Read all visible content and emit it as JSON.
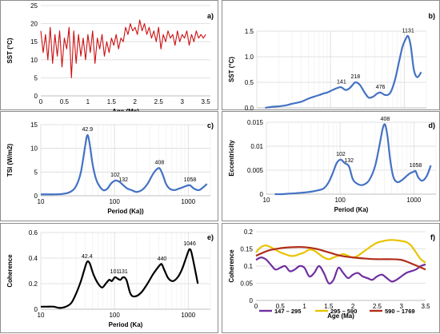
{
  "chart_data": [
    {
      "id": "a",
      "panel_label": "a)",
      "type": "line",
      "xscale": "linear",
      "xlabel": "Age (Ma)",
      "ylabel": "SST (°C)",
      "xlim": [
        0,
        3.6
      ],
      "ylim": [
        0,
        25
      ],
      "xticks": [
        0,
        0.5,
        1,
        1.5,
        2,
        2.5,
        3,
        3.5
      ],
      "xticklabels": [
        "0",
        "0.5",
        "1",
        "1.5",
        "2",
        "2.5",
        "3",
        "3.5"
      ],
      "yticks": [
        0,
        5,
        10,
        15,
        20,
        25
      ],
      "yticklabels": [
        "0",
        "5",
        "10",
        "15",
        "20",
        "25"
      ],
      "grid": true,
      "series": [
        {
          "color": "#cc1111",
          "x": [
            0.0,
            0.05,
            0.1,
            0.15,
            0.2,
            0.25,
            0.3,
            0.35,
            0.4,
            0.45,
            0.5,
            0.55,
            0.6,
            0.65,
            0.7,
            0.75,
            0.8,
            0.85,
            0.9,
            0.95,
            1.0,
            1.05,
            1.1,
            1.15,
            1.2,
            1.25,
            1.3,
            1.35,
            1.4,
            1.45,
            1.5,
            1.55,
            1.6,
            1.65,
            1.7,
            1.75,
            1.8,
            1.85,
            1.9,
            1.95,
            2.0,
            2.05,
            2.1,
            2.15,
            2.2,
            2.25,
            2.3,
            2.35,
            2.4,
            2.45,
            2.5,
            2.55,
            2.6,
            2.65,
            2.7,
            2.75,
            2.8,
            2.85,
            2.9,
            2.95,
            3.0,
            3.05,
            3.1,
            3.15,
            3.2,
            3.25,
            3.3,
            3.35,
            3.4,
            3.45,
            3.5
          ],
          "values": [
            18,
            12,
            17,
            10,
            19,
            9,
            17,
            11,
            18,
            8,
            16,
            13,
            19,
            5,
            18,
            9,
            17,
            11,
            16,
            10,
            17,
            12,
            18,
            9,
            16,
            13,
            17,
            11,
            15,
            12,
            16,
            14,
            17,
            13,
            16,
            15,
            19,
            17,
            20,
            18,
            19,
            17,
            21,
            18,
            20,
            17,
            19,
            16,
            18,
            15,
            19,
            13,
            17,
            15,
            18,
            16,
            17,
            14,
            18,
            15,
            17,
            16,
            18,
            14,
            17,
            15,
            18,
            16,
            17,
            16,
            17
          ]
        }
      ]
    },
    {
      "id": "b",
      "panel_label": "b)",
      "type": "line",
      "xscale": "log",
      "xlabel": "Period (Ka)",
      "ylabel": "SST (°C)",
      "xlim": [
        10,
        2000
      ],
      "ylim": [
        0,
        1.5
      ],
      "xticks": [
        10,
        100,
        1000
      ],
      "xticklabels": [
        "10",
        "100",
        "1000"
      ],
      "yticks": [
        0,
        0.5,
        1,
        1.5
      ],
      "yticklabels": [
        "0.0",
        "0.5",
        "1.0",
        "1.5"
      ],
      "grid": true,
      "peaks": [
        {
          "x": 141,
          "y": 0.4,
          "label": "141"
        },
        {
          "x": 218,
          "y": 0.5,
          "label": "218"
        },
        {
          "x": 476,
          "y": 0.3,
          "label": "476"
        },
        {
          "x": 1131,
          "y": 1.4,
          "label": "1131"
        }
      ],
      "series": [
        {
          "color": "#4472c4",
          "x": [
            13,
            16,
            20,
            25,
            30,
            40,
            50,
            60,
            70,
            80,
            90,
            100,
            115,
            130,
            141,
            160,
            180,
            200,
            218,
            250,
            290,
            330,
            380,
            430,
            476,
            560,
            650,
            750,
            850,
            950,
            1050,
            1131,
            1230,
            1350,
            1500,
            1700
          ],
          "values": [
            0.0,
            0.02,
            0.03,
            0.05,
            0.08,
            0.12,
            0.18,
            0.22,
            0.25,
            0.28,
            0.3,
            0.33,
            0.37,
            0.4,
            0.4,
            0.35,
            0.38,
            0.45,
            0.5,
            0.45,
            0.3,
            0.2,
            0.22,
            0.28,
            0.3,
            0.25,
            0.3,
            0.55,
            0.9,
            1.2,
            1.35,
            1.4,
            1.2,
            0.75,
            0.6,
            0.7
          ]
        }
      ]
    },
    {
      "id": "c",
      "panel_label": "c)",
      "type": "line",
      "xscale": "log",
      "xlabel": "Period (Ka))",
      "ylabel": "TSI (W/m2)",
      "xlim": [
        10,
        2000
      ],
      "ylim": [
        0,
        15
      ],
      "xticks": [
        10,
        100,
        1000
      ],
      "xticklabels": [
        "10",
        "100",
        "1000"
      ],
      "yticks": [
        0,
        5,
        10,
        15
      ],
      "yticklabels": [
        "0",
        "5",
        "10",
        "15"
      ],
      "grid": true,
      "peaks": [
        {
          "x": 42.9,
          "y": 12.8,
          "label": "42.9"
        },
        {
          "x": 102,
          "y": 3.2,
          "label": "102"
        },
        {
          "x": 132,
          "y": 2.2,
          "label": "132"
        },
        {
          "x": 408,
          "y": 5.8,
          "label": "408"
        },
        {
          "x": 1058,
          "y": 2.2,
          "label": "1058"
        }
      ],
      "series": [
        {
          "color": "#4472c4",
          "x": [
            10,
            15,
            20,
            25,
            30,
            35,
            40,
            42.9,
            46,
            50,
            55,
            60,
            70,
            80,
            90,
            102,
            115,
            132,
            150,
            170,
            200,
            240,
            280,
            330,
            370,
            408,
            450,
            500,
            560,
            650,
            750,
            850,
            950,
            1058,
            1200,
            1400,
            1600,
            1800
          ],
          "values": [
            0.3,
            0.3,
            0.4,
            0.8,
            2.0,
            5.0,
            10.5,
            12.8,
            11.0,
            7.0,
            4.0,
            2.5,
            1.2,
            1.5,
            2.6,
            3.2,
            3.0,
            2.2,
            1.5,
            1.2,
            0.8,
            1.3,
            2.5,
            4.5,
            5.5,
            5.8,
            4.5,
            2.5,
            1.5,
            1.2,
            1.5,
            1.8,
            2.1,
            2.2,
            1.5,
            1.2,
            1.8,
            2.5
          ]
        }
      ]
    },
    {
      "id": "d",
      "panel_label": "d)",
      "type": "line",
      "xscale": "log",
      "xlabel": "Period (Ka)",
      "ylabel": "Eccentricity",
      "xlim": [
        10,
        2000
      ],
      "ylim": [
        0,
        0.015
      ],
      "xticks": [
        10,
        100,
        1000
      ],
      "xticklabels": [
        "10",
        "100",
        "1000"
      ],
      "yticks": [
        0,
        0.005,
        0.01,
        0.015
      ],
      "yticklabels": [
        "0",
        "0.005",
        "0.01",
        "0.015"
      ],
      "grid": true,
      "peaks": [
        {
          "x": 102,
          "y": 0.0072,
          "label": "102"
        },
        {
          "x": 132,
          "y": 0.0058,
          "label": "132"
        },
        {
          "x": 408,
          "y": 0.0145,
          "label": "408"
        },
        {
          "x": 1058,
          "y": 0.0048,
          "label": "1058"
        }
      ],
      "series": [
        {
          "color": "#4472c4",
          "x": [
            13,
            16,
            20,
            25,
            30,
            40,
            50,
            60,
            70,
            80,
            90,
            102,
            115,
            132,
            150,
            180,
            210,
            250,
            300,
            350,
            380,
            408,
            440,
            480,
            530,
            600,
            700,
            800,
            900,
            1000,
            1058,
            1150,
            1300,
            1500,
            1700
          ],
          "values": [
            0.0,
            0.0,
            0.0001,
            0.0002,
            0.0003,
            0.0005,
            0.0008,
            0.0012,
            0.0025,
            0.0045,
            0.0065,
            0.0072,
            0.0065,
            0.0058,
            0.003,
            0.002,
            0.002,
            0.003,
            0.006,
            0.011,
            0.0138,
            0.0145,
            0.012,
            0.007,
            0.0035,
            0.0025,
            0.003,
            0.0038,
            0.0044,
            0.0047,
            0.0048,
            0.0035,
            0.0028,
            0.0038,
            0.006
          ]
        }
      ]
    },
    {
      "id": "e",
      "panel_label": "e)",
      "type": "line",
      "xscale": "log",
      "xlabel": "Period (Ka)",
      "ylabel": "Coherence",
      "xlim": [
        10,
        2000
      ],
      "ylim": [
        0,
        0.6
      ],
      "xticks": [
        10,
        100,
        1000
      ],
      "xticklabels": [
        "10",
        "100",
        "1000"
      ],
      "yticks": [
        0,
        0.2,
        0.4,
        0.6
      ],
      "yticklabels": [
        "0",
        "0.2",
        "0.4",
        "0.6"
      ],
      "grid": true,
      "peaks": [
        {
          "x": 42.4,
          "y": 0.37,
          "label": "42.4"
        },
        {
          "x": 101,
          "y": 0.25,
          "label": "101"
        },
        {
          "x": 131,
          "y": 0.25,
          "label": "131"
        },
        {
          "x": 440,
          "y": 0.35,
          "label": "440"
        },
        {
          "x": 1046,
          "y": 0.47,
          "label": "1046"
        }
      ],
      "series": [
        {
          "color": "#000000",
          "x": [
            10,
            12,
            15,
            18,
            22,
            26,
            30,
            35,
            39,
            42.4,
            46,
            52,
            60,
            68,
            76,
            85,
            92,
            101,
            110,
            120,
            131,
            145,
            165,
            190,
            230,
            280,
            330,
            380,
            420,
            440,
            480,
            540,
            620,
            720,
            820,
            920,
            1000,
            1046,
            1100,
            1200,
            1350
          ],
          "values": [
            0.02,
            0.02,
            0.02,
            0.01,
            0.02,
            0.05,
            0.12,
            0.22,
            0.31,
            0.37,
            0.36,
            0.27,
            0.2,
            0.17,
            0.2,
            0.23,
            0.22,
            0.25,
            0.24,
            0.23,
            0.25,
            0.23,
            0.12,
            0.1,
            0.13,
            0.2,
            0.27,
            0.32,
            0.35,
            0.35,
            0.3,
            0.24,
            0.22,
            0.25,
            0.31,
            0.39,
            0.45,
            0.47,
            0.45,
            0.35,
            0.2
          ]
        }
      ]
    },
    {
      "id": "f",
      "panel_label": "f)",
      "type": "line",
      "xscale": "linear",
      "xlabel": "Age (Ma)",
      "ylabel": "Coherence",
      "xlim": [
        0,
        3.5
      ],
      "ylim": [
        0,
        0.2
      ],
      "xticks": [
        0,
        0.5,
        1,
        1.5,
        2,
        2.5,
        3,
        3.5
      ],
      "xticklabels": [
        "0",
        "0.5",
        "1",
        "1.5",
        "2",
        "2.5",
        "3",
        "3.5"
      ],
      "yticks": [
        0,
        0.05,
        0.1,
        0.15,
        0.2
      ],
      "yticklabels": [
        "0",
        "0.05",
        "0.1",
        "0.15",
        "0.2"
      ],
      "grid": true,
      "legend_position": "bottom-left",
      "series": [
        {
          "name": "147 – 295",
          "color": "#7030a0",
          "x": [
            0.0,
            0.1,
            0.2,
            0.3,
            0.4,
            0.5,
            0.6,
            0.7,
            0.8,
            0.9,
            1.0,
            1.1,
            1.2,
            1.3,
            1.4,
            1.5,
            1.6,
            1.7,
            1.8,
            1.9,
            2.0,
            2.1,
            2.2,
            2.3,
            2.4,
            2.5,
            2.6,
            2.7,
            2.8,
            2.9,
            3.0,
            3.1,
            3.2,
            3.3,
            3.4,
            3.5
          ],
          "values": [
            0.118,
            0.125,
            0.12,
            0.105,
            0.09,
            0.095,
            0.1,
            0.085,
            0.09,
            0.1,
            0.095,
            0.07,
            0.08,
            0.1,
            0.08,
            0.05,
            0.06,
            0.095,
            0.08,
            0.065,
            0.075,
            0.08,
            0.07,
            0.065,
            0.06,
            0.07,
            0.075,
            0.065,
            0.055,
            0.06,
            0.07,
            0.08,
            0.085,
            0.09,
            0.1,
            0.105
          ]
        },
        {
          "name": "295 – 590",
          "color": "#e8c300",
          "x": [
            0.0,
            0.1,
            0.2,
            0.3,
            0.4,
            0.5,
            0.6,
            0.7,
            0.8,
            0.9,
            1.0,
            1.1,
            1.2,
            1.3,
            1.4,
            1.5,
            1.6,
            1.7,
            1.8,
            1.9,
            2.0,
            2.1,
            2.2,
            2.3,
            2.4,
            2.5,
            2.6,
            2.7,
            2.8,
            2.9,
            3.0,
            3.1,
            3.2,
            3.3,
            3.4,
            3.5
          ],
          "values": [
            0.14,
            0.155,
            0.16,
            0.155,
            0.148,
            0.14,
            0.135,
            0.13,
            0.13,
            0.135,
            0.14,
            0.148,
            0.145,
            0.135,
            0.125,
            0.12,
            0.125,
            0.13,
            0.135,
            0.13,
            0.125,
            0.13,
            0.14,
            0.15,
            0.16,
            0.168,
            0.172,
            0.175,
            0.176,
            0.175,
            0.173,
            0.17,
            0.16,
            0.14,
            0.12,
            0.11
          ]
        },
        {
          "name": "590 – 1769",
          "color": "#b02e1a",
          "x": [
            0.0,
            0.25,
            0.5,
            0.75,
            1.0,
            1.25,
            1.5,
            1.75,
            2.0,
            2.25,
            2.5,
            2.75,
            3.0,
            3.25,
            3.5
          ],
          "values": [
            0.13,
            0.145,
            0.152,
            0.155,
            0.155,
            0.15,
            0.14,
            0.13,
            0.125,
            0.122,
            0.12,
            0.12,
            0.118,
            0.105,
            0.09
          ]
        }
      ]
    }
  ]
}
